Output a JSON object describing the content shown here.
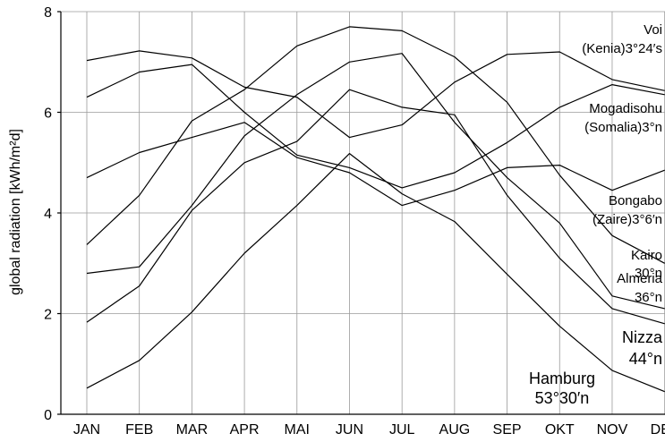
{
  "chart_data": {
    "type": "line",
    "title": "",
    "xlabel": "",
    "ylabel": "global radiation [kWh/m²d]",
    "categories": [
      "JAN",
      "FEB",
      "MAR",
      "APR",
      "MAI",
      "JUN",
      "JUL",
      "AUG",
      "SEP",
      "OKT",
      "NOV",
      "DEZ"
    ],
    "ylim": [
      0,
      8
    ],
    "yticks": [
      0,
      2,
      4,
      6,
      8
    ],
    "grid": true,
    "series": [
      {
        "name": "Voi (Kenia)3°24′s",
        "label_lines": [
          "Voi",
          "(Kenia)3°24′s"
        ],
        "values": [
          7.03,
          7.22,
          7.08,
          6.5,
          6.3,
          5.5,
          5.75,
          6.6,
          7.15,
          7.2,
          6.65,
          6.43
        ]
      },
      {
        "name": "Mogadisohu (Somalia)3°n",
        "label_lines": [
          "Mogadisohu",
          "(Somalia)3°n"
        ],
        "values": [
          6.3,
          6.8,
          6.95,
          6.0,
          5.15,
          4.9,
          4.5,
          4.8,
          5.4,
          6.1,
          6.55,
          6.35
        ]
      },
      {
        "name": "Bongabo (Zaire)3°6′n",
        "label_lines": [
          "Bongabo",
          "(Zaire)3°6′n"
        ],
        "values": [
          4.7,
          5.2,
          5.5,
          5.8,
          5.1,
          4.8,
          4.15,
          4.45,
          4.9,
          4.95,
          4.45,
          4.85
        ]
      },
      {
        "name": "Kairo 30°n",
        "label_lines": [
          "Kairo",
          "30°n"
        ],
        "values": [
          3.37,
          4.35,
          5.83,
          6.45,
          7.32,
          7.7,
          7.62,
          7.1,
          6.2,
          4.75,
          3.55,
          3.0
        ]
      },
      {
        "name": "Almeria 36°n",
        "label_lines": [
          "Almeria",
          "36°n"
        ],
        "values": [
          2.8,
          2.93,
          4.15,
          5.53,
          6.35,
          7.0,
          7.17,
          5.8,
          4.7,
          3.8,
          2.35,
          2.1
        ]
      },
      {
        "name": "Nizza 44°n",
        "label_lines": [
          "Nizza",
          "44°n"
        ],
        "values": [
          1.83,
          2.55,
          4.05,
          5.0,
          5.42,
          6.45,
          6.1,
          5.95,
          4.35,
          3.1,
          2.1,
          1.8
        ]
      },
      {
        "name": "Hamburg 53°30′n",
        "label_lines": [
          "Hamburg",
          "53°30′n"
        ],
        "values": [
          0.52,
          1.07,
          2.03,
          3.2,
          4.15,
          5.18,
          4.38,
          3.83,
          2.78,
          1.75,
          0.87,
          0.45
        ]
      }
    ]
  }
}
